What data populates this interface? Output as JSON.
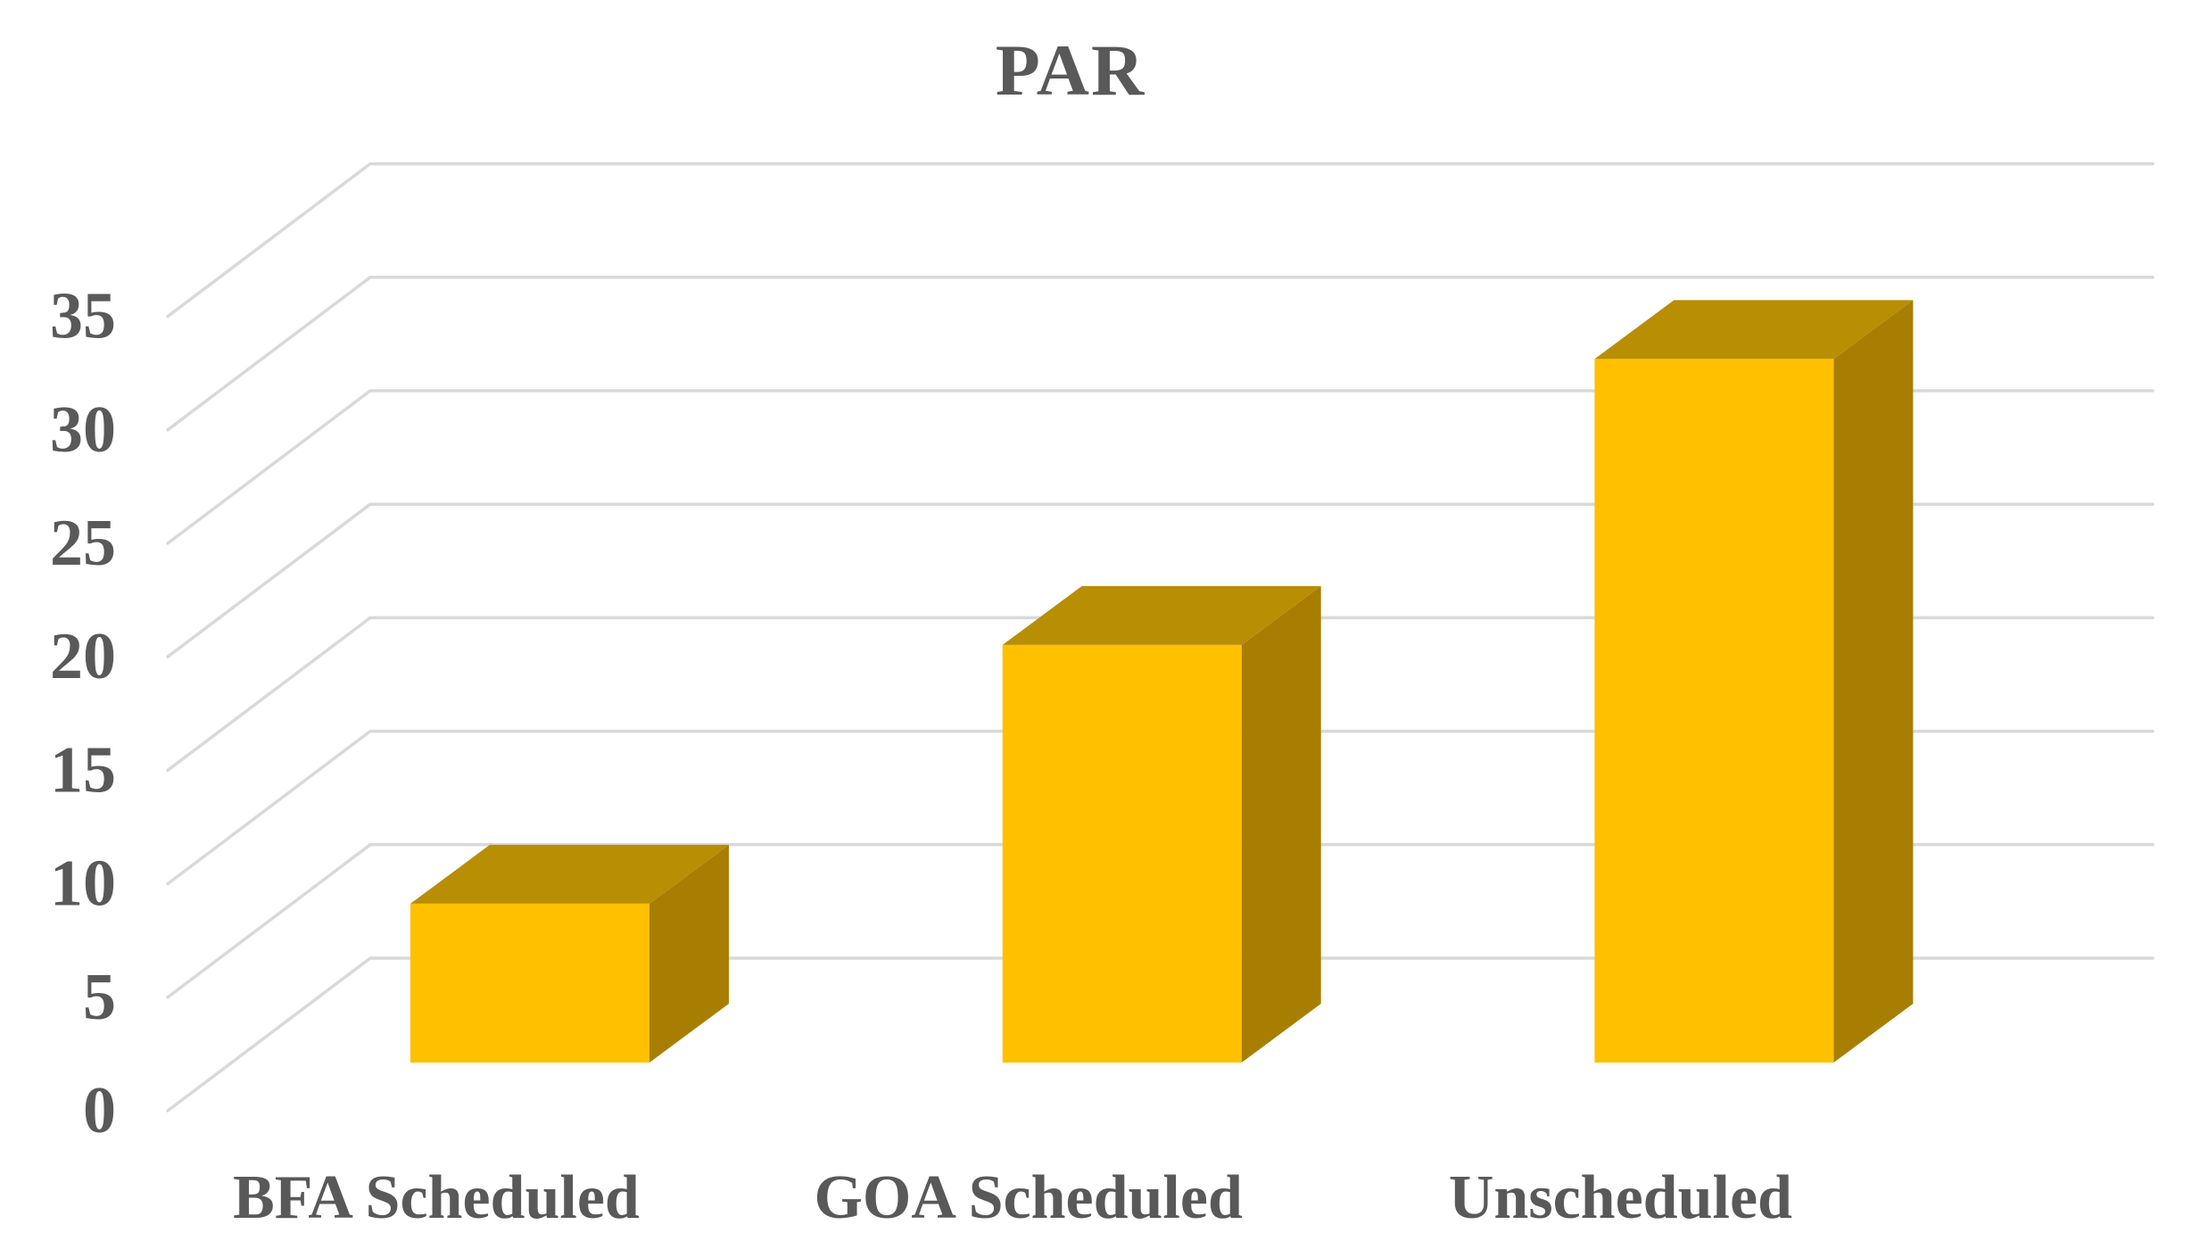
{
  "chart_data": {
    "type": "bar",
    "variant": "3d-column",
    "title": "PAR",
    "categories": [
      "BFA Scheduled",
      "GOA Scheduled",
      "Unscheduled"
    ],
    "values": [
      7,
      18.4,
      31
    ],
    "xlabel": "",
    "ylabel": "",
    "ylim": [
      0,
      35
    ],
    "ytick_step": 5,
    "ytick_labels": [
      "0",
      "5",
      "10",
      "15",
      "20",
      "25",
      "30",
      "35"
    ],
    "grid": true,
    "legend": false,
    "colors": {
      "bar_front": "#FFC000",
      "bar_top": "#B88E03",
      "bar_side": "#A77E02",
      "gridline": "#D9D9D9",
      "text": "#595959",
      "background": "#FFFFFF"
    }
  }
}
